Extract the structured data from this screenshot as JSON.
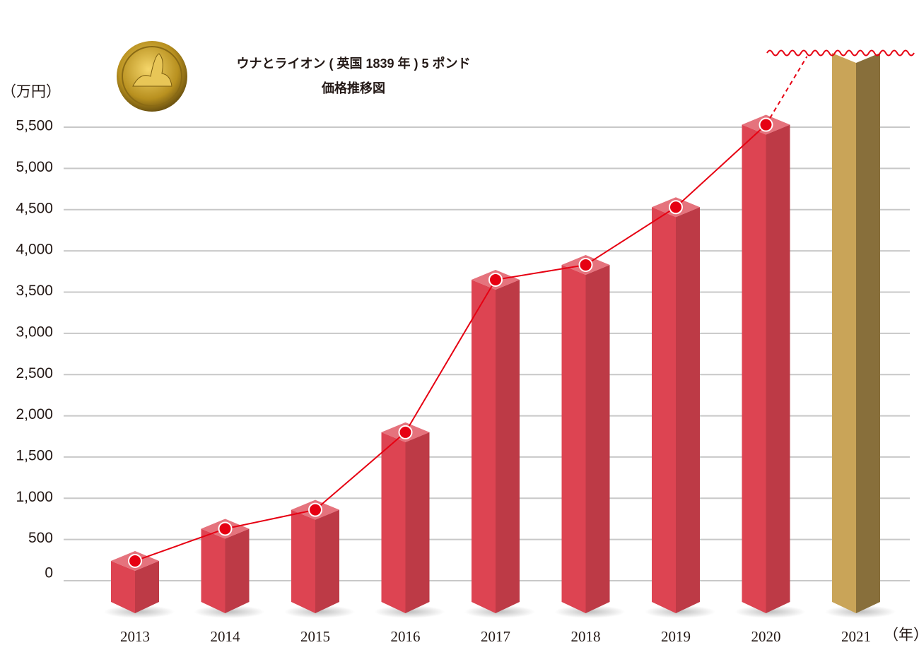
{
  "chart_data": {
    "type": "bar",
    "title": "ウナとライオン ( 英国 1839 年 ) 5 ポンド",
    "subtitle": "価格推移図",
    "y_label": "（万円）",
    "x_label": "（年）",
    "categories": [
      "2013",
      "2014",
      "2015",
      "2016",
      "2017",
      "2018",
      "2019",
      "2020",
      "2021"
    ],
    "values": [
      240,
      630,
      860,
      1800,
      3650,
      3830,
      4530,
      5530,
      null
    ],
    "color": "#dd4452",
    "line_color": "#e60012",
    "off_scale_color": "#c9a458",
    "ylim": [
      0,
      6400
    ],
    "yticks": [
      0,
      500,
      {
        "value": 1000,
        "label": "1,000"
      },
      {
        "value": 1500,
        "label": "1,500"
      },
      {
        "value": 2000,
        "label": "2,000"
      },
      {
        "value": 2500,
        "label": "2,500"
      },
      {
        "value": 3000,
        "label": "3,000"
      },
      {
        "value": 3500,
        "label": "3,500"
      },
      {
        "value": 4000,
        "label": "4,000"
      },
      {
        "value": 4500,
        "label": "4,500"
      },
      {
        "value": 5000,
        "label": "5,000"
      },
      {
        "value": 5500,
        "label": "5,500"
      }
    ],
    "grid": true
  }
}
